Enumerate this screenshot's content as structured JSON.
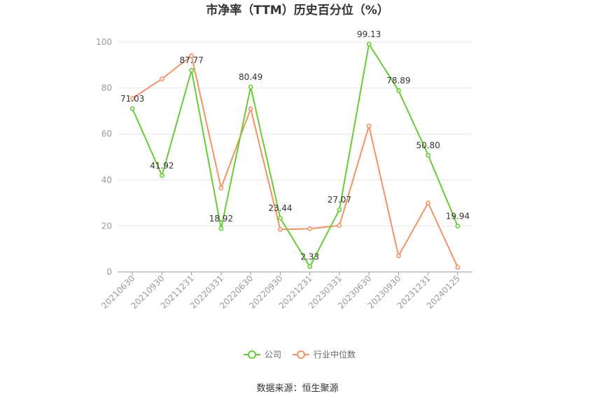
{
  "colors": {
    "company": "#66cc33",
    "industry": "#f29366",
    "grid": "#e6e6e6",
    "axis": "#999999"
  },
  "chart_data": {
    "type": "line",
    "title": "市净率（TTM）历史百分位（%）",
    "categories": [
      "20210630",
      "20210930",
      "20211231",
      "20220331",
      "20220630",
      "20220930",
      "20221231",
      "20230331",
      "20230630",
      "20230930",
      "20231231",
      "20240125"
    ],
    "ylim": [
      0,
      100
    ],
    "yticks": [
      0,
      20,
      40,
      60,
      80,
      100
    ],
    "grid": true,
    "legend_position": "bottom",
    "series": [
      {
        "name": "公司",
        "color_key": "company",
        "values": [
          71.03,
          41.92,
          87.77,
          18.92,
          80.49,
          23.44,
          2.33,
          27.07,
          99.13,
          78.89,
          50.8,
          19.94
        ],
        "labels": [
          "71.03",
          "41.92",
          "87.77",
          "18.92",
          "80.49",
          "23.44",
          "2.33",
          "27.07",
          "99.13",
          "78.89",
          "50.80",
          "19.94"
        ]
      },
      {
        "name": "行业中位数",
        "color_key": "industry",
        "values": [
          75.5,
          84.0,
          94.0,
          36.5,
          71.0,
          18.5,
          18.8,
          20.2,
          63.5,
          7.0,
          30.0,
          2.0
        ]
      }
    ],
    "source": "数据来源：恒生聚源"
  }
}
